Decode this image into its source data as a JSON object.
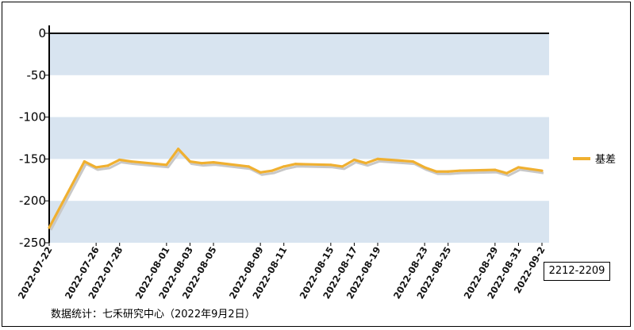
{
  "chart_data": {
    "type": "line",
    "title": "",
    "xlabel": "",
    "ylabel": "",
    "ylim": [
      -250,
      0
    ],
    "yticks": [
      "0",
      "-50",
      "-100",
      "-150",
      "-200",
      "-250"
    ],
    "x_tick_labels": [
      "2022-07-22",
      "2022-07-26",
      "2022-07-28",
      "2022-08-01",
      "2022-08-03",
      "2022-08-05",
      "2022-08-09",
      "2022-08-11",
      "2022-08-15",
      "2022-08-17",
      "2022-08-19",
      "2022-08-23",
      "2022-08-25",
      "2022-08-29",
      "2022-08-31",
      "2022-09-2"
    ],
    "x": [
      "2022-07-22",
      "2022-07-25",
      "2022-07-26",
      "2022-07-27",
      "2022-07-28",
      "2022-07-29",
      "2022-08-01",
      "2022-08-02",
      "2022-08-03",
      "2022-08-04",
      "2022-08-05",
      "2022-08-08",
      "2022-08-09",
      "2022-08-10",
      "2022-08-11",
      "2022-08-12",
      "2022-08-15",
      "2022-08-16",
      "2022-08-17",
      "2022-08-18",
      "2022-08-19",
      "2022-08-22",
      "2022-08-23",
      "2022-08-24",
      "2022-08-25",
      "2022-08-26",
      "2022-08-29",
      "2022-08-30",
      "2022-08-31",
      "2022-09-01",
      "2022-09-02"
    ],
    "series": [
      {
        "name": "基差",
        "color": "#f0b030",
        "shadow_color": "#c8c8c8",
        "values": [
          -232,
          -153,
          -160,
          -158,
          -151,
          -153,
          -157,
          -138,
          -153,
          -155,
          -154,
          -159,
          -166,
          -164,
          -159,
          -156,
          -157,
          -159,
          -151,
          -155,
          -150,
          -153,
          -160,
          -165,
          -165,
          -164,
          -163,
          -167,
          -160,
          -162,
          -164
        ]
      }
    ],
    "band_color": "#d8e4f0",
    "grid": false,
    "legend_position": "right"
  },
  "contract_label": "2212-2209",
  "source_note": "数据统计：七禾研究中心（2022年9月2日）"
}
